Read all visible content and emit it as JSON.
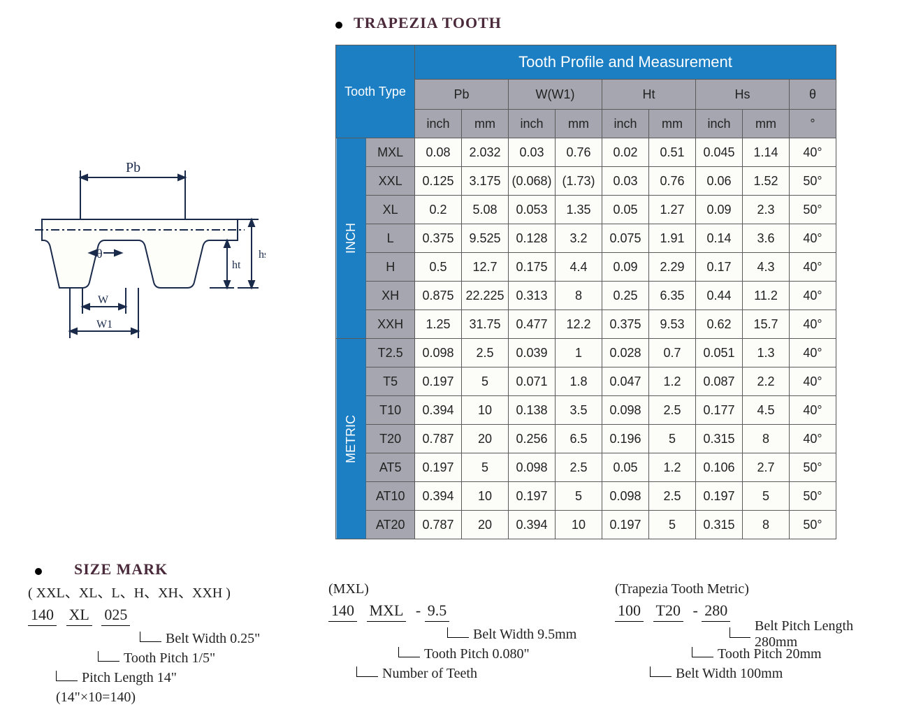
{
  "title": "TRAPEZIA TOOTH",
  "title_color": "#4a2a3a",
  "table": {
    "header_bg": "#1c7fc4",
    "header_text_color": "#ffffff",
    "sub_header_bg": "#a6a6b0",
    "cell_bg": "#fcfcf9",
    "border_color": "#5a5a5a",
    "font_size": 18,
    "tooth_type_label": "Tooth Type",
    "profile_label": "Tooth Profile and Measurement",
    "col_groups": [
      "Pb",
      "W(W1)",
      "Ht",
      "Hs",
      "θ"
    ],
    "units": [
      "inch",
      "mm",
      "inch",
      "mm",
      "inch",
      "mm",
      "inch",
      "mm",
      "°"
    ],
    "groups": [
      {
        "label": "INCH",
        "rows": [
          {
            "name": "MXL",
            "vals": [
              "0.08",
              "2.032",
              "0.03",
              "0.76",
              "0.02",
              "0.51",
              "0.045",
              "1.14",
              "40°"
            ]
          },
          {
            "name": "XXL",
            "vals": [
              "0.125",
              "3.175",
              "(0.068)",
              "(1.73)",
              "0.03",
              "0.76",
              "0.06",
              "1.52",
              "50°"
            ]
          },
          {
            "name": "XL",
            "vals": [
              "0.2",
              "5.08",
              "0.053",
              "1.35",
              "0.05",
              "1.27",
              "0.09",
              "2.3",
              "50°"
            ]
          },
          {
            "name": "L",
            "vals": [
              "0.375",
              "9.525",
              "0.128",
              "3.2",
              "0.075",
              "1.91",
              "0.14",
              "3.6",
              "40°"
            ]
          },
          {
            "name": "H",
            "vals": [
              "0.5",
              "12.7",
              "0.175",
              "4.4",
              "0.09",
              "2.29",
              "0.17",
              "4.3",
              "40°"
            ]
          },
          {
            "name": "XH",
            "vals": [
              "0.875",
              "22.225",
              "0.313",
              "8",
              "0.25",
              "6.35",
              "0.44",
              "11.2",
              "40°"
            ]
          },
          {
            "name": "XXH",
            "vals": [
              "1.25",
              "31.75",
              "0.477",
              "12.2",
              "0.375",
              "9.53",
              "0.62",
              "15.7",
              "40°"
            ]
          }
        ]
      },
      {
        "label": "METRIC",
        "rows": [
          {
            "name": "T2.5",
            "vals": [
              "0.098",
              "2.5",
              "0.039",
              "1",
              "0.028",
              "0.7",
              "0.051",
              "1.3",
              "40°"
            ]
          },
          {
            "name": "T5",
            "vals": [
              "0.197",
              "5",
              "0.071",
              "1.8",
              "0.047",
              "1.2",
              "0.087",
              "2.2",
              "40°"
            ]
          },
          {
            "name": "T10",
            "vals": [
              "0.394",
              "10",
              "0.138",
              "3.5",
              "0.098",
              "2.5",
              "0.177",
              "4.5",
              "40°"
            ]
          },
          {
            "name": "T20",
            "vals": [
              "0.787",
              "20",
              "0.256",
              "6.5",
              "0.196",
              "5",
              "0.315",
              "8",
              "40°"
            ]
          },
          {
            "name": "AT5",
            "vals": [
              "0.197",
              "5",
              "0.098",
              "2.5",
              "0.05",
              "1.2",
              "0.106",
              "2.7",
              "50°"
            ]
          },
          {
            "name": "AT10",
            "vals": [
              "0.394",
              "10",
              "0.197",
              "5",
              "0.098",
              "2.5",
              "0.197",
              "5",
              "50°"
            ]
          },
          {
            "name": "AT20",
            "vals": [
              "0.787",
              "20",
              "0.394",
              "10",
              "0.197",
              "5",
              "0.315",
              "8",
              "50°"
            ]
          }
        ]
      }
    ]
  },
  "diagram": {
    "stroke": "#1a2a4a",
    "fill": "#ffffff",
    "label_font_size": 16,
    "labels": {
      "pb": "Pb",
      "theta": "θ",
      "ht": "ht",
      "hs": "hs",
      "w": "W",
      "w1": "W1"
    }
  },
  "size_mark": {
    "title": "SIZE MARK",
    "title_color": "#4a2a3a",
    "blocks": [
      {
        "heading": "( XXL、XL、L、H、XH、XXH )",
        "parts": [
          "140",
          "XL",
          "025"
        ],
        "sep": "   ",
        "explain": [
          "Belt Width 0.25\"",
          "Tooth Pitch 1/5\"",
          "Pitch Length 14\"",
          "(14\"×10=140)"
        ],
        "indents": [
          160,
          100,
          40,
          40
        ]
      },
      {
        "heading": "(MXL)",
        "parts": [
          "140",
          "MXL",
          "9.5"
        ],
        "sep": " - ",
        "explain": [
          "Belt Width 9.5mm",
          "Tooth Pitch 0.080\"",
          "Number of Teeth"
        ],
        "indents": [
          170,
          100,
          40
        ]
      },
      {
        "heading": "(Trapezia Tooth Metric)",
        "parts": [
          "100",
          "T20",
          "280"
        ],
        "sep": " - ",
        "explain": [
          "Belt Pitch Length 280mm",
          "Tooth Pitch 20mm",
          "Belt Width 100mm"
        ],
        "indents": [
          170,
          110,
          50
        ]
      }
    ]
  }
}
